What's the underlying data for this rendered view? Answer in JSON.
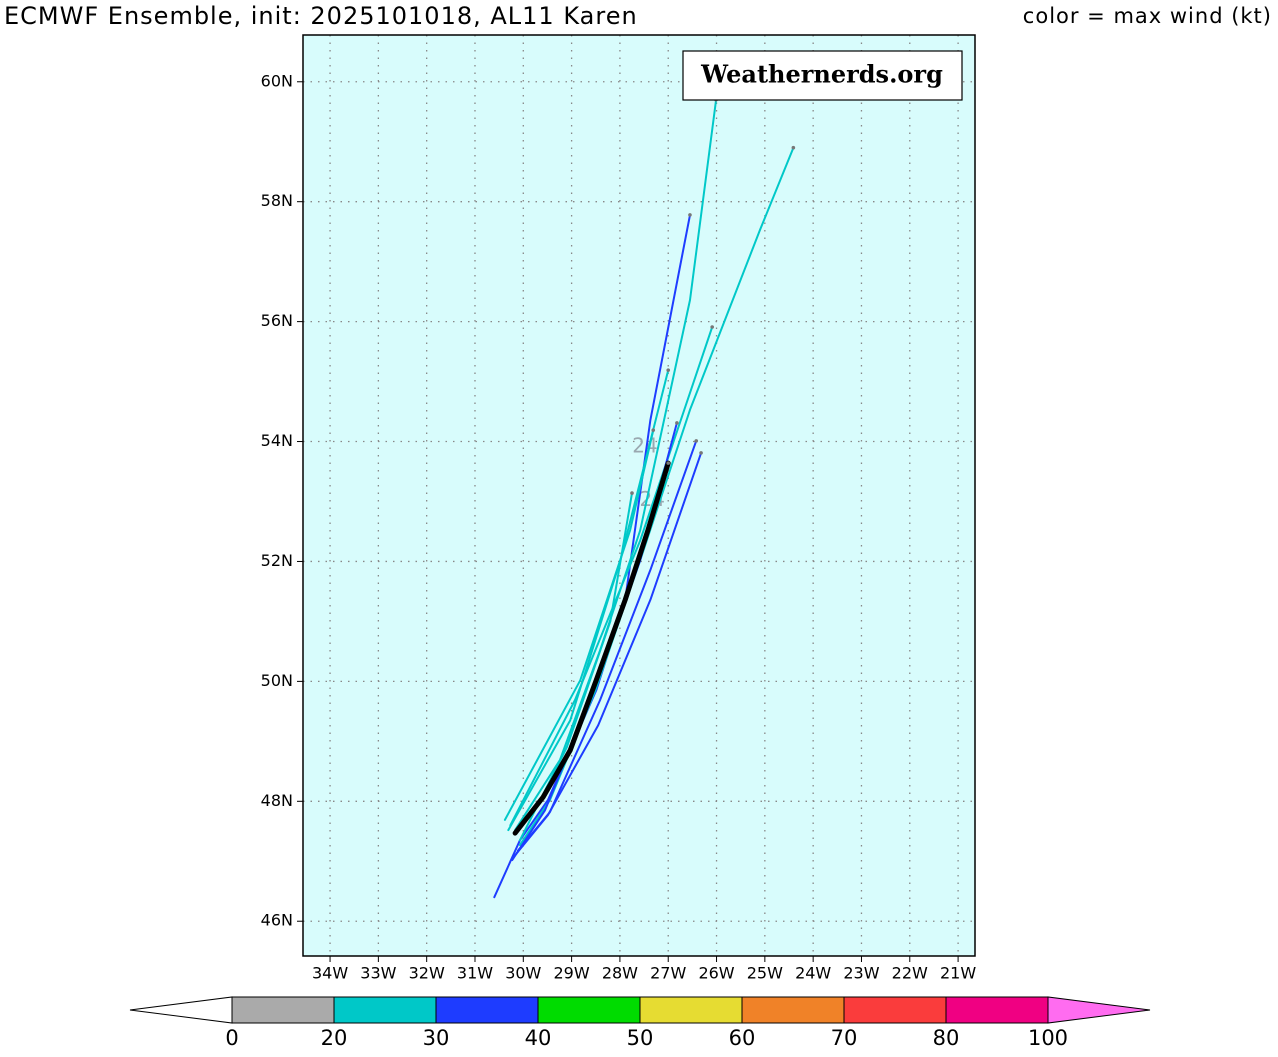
{
  "chart_data": {
    "type": "track_map",
    "title": "ECMWF Ensemble, init: 2025101018, AL11 Karen",
    "subtitle": "color = max wind (kt)",
    "watermark": "Weathernerds.org",
    "xlim": [
      -34.56,
      -20.65
    ],
    "ylim": [
      45.42,
      60.78
    ],
    "xticks": [
      {
        "value": -34,
        "label": "34W"
      },
      {
        "value": -33,
        "label": "33W"
      },
      {
        "value": -32,
        "label": "32W"
      },
      {
        "value": -31,
        "label": "31W"
      },
      {
        "value": -30,
        "label": "30W"
      },
      {
        "value": -29,
        "label": "29W"
      },
      {
        "value": -28,
        "label": "28W"
      },
      {
        "value": -27,
        "label": "27W"
      },
      {
        "value": -26,
        "label": "26W"
      },
      {
        "value": -25,
        "label": "25W"
      },
      {
        "value": -24,
        "label": "24W"
      },
      {
        "value": -23,
        "label": "23W"
      },
      {
        "value": -22,
        "label": "22W"
      },
      {
        "value": -21,
        "label": "21W"
      }
    ],
    "yticks": [
      {
        "value": 46,
        "label": "46N"
      },
      {
        "value": 48,
        "label": "48N"
      },
      {
        "value": 50,
        "label": "50N"
      },
      {
        "value": 52,
        "label": "52N"
      },
      {
        "value": 54,
        "label": "54N"
      },
      {
        "value": 56,
        "label": "56N"
      },
      {
        "value": 58,
        "label": "58N"
      },
      {
        "value": 60,
        "label": "60N"
      }
    ],
    "grid": true,
    "background": "#d8fcfc",
    "series": [
      {
        "color": "#1e3cff",
        "lon": [
          -30.6,
          -30.07,
          -29.49,
          -28.49,
          -27.89,
          -27.37,
          -26.55
        ],
        "lat": [
          46.4,
          47.35,
          48.02,
          49.85,
          51.36,
          54.36,
          57.78
        ]
      },
      {
        "color": "#00c8c8",
        "lon": [
          -30.17,
          -29.24,
          -28.41,
          -27.58,
          -26.55,
          -26.01
        ],
        "lat": [
          47.52,
          48.69,
          50.52,
          52.52,
          56.36,
          59.7
        ]
      },
      {
        "color": "#00c8c8",
        "lon": [
          -30.07,
          -29.45,
          -28.51,
          -27.58,
          -26.55,
          -25.1,
          -24.41
        ],
        "lat": [
          47.27,
          48.02,
          49.85,
          52.02,
          54.53,
          57.53,
          58.9
        ]
      },
      {
        "color": "#00c8c8",
        "lon": [
          -30.27,
          -28.93,
          -27.58,
          -26.09
        ],
        "lat": [
          47.6,
          49.69,
          52.35,
          55.91
        ]
      },
      {
        "color": "#00c8c8",
        "lon": [
          -30.31,
          -29.03,
          -27.99,
          -27.0
        ],
        "lat": [
          47.52,
          49.35,
          52.02,
          55.19
        ]
      },
      {
        "color": "#1e3cff",
        "lon": [
          -30.17,
          -29.49,
          -28.45,
          -27.37,
          -26.32
        ],
        "lat": [
          47.1,
          47.77,
          49.27,
          51.36,
          53.81
        ]
      },
      {
        "color": "#1e3cff",
        "lon": [
          -30.23,
          -29.55,
          -28.62,
          -27.58,
          -26.82
        ],
        "lat": [
          47.02,
          47.85,
          49.69,
          52.02,
          54.31
        ]
      },
      {
        "color": "#00c8c8",
        "lon": [
          -30.38,
          -28.82,
          -27.79,
          -27.31
        ],
        "lat": [
          47.69,
          50.02,
          52.52,
          54.19
        ]
      },
      {
        "color": "#1e3cff",
        "lon": [
          -30.11,
          -29.45,
          -28.41,
          -27.37,
          -26.42
        ],
        "lat": [
          47.18,
          47.82,
          49.69,
          51.86,
          54.01
        ]
      },
      {
        "color": "#00c8c8",
        "lon": [
          -30.07,
          -29.1,
          -28.2,
          -27.75
        ],
        "lat": [
          47.35,
          48.9,
          51.0,
          53.14
        ]
      }
    ],
    "mean_track": {
      "color": "#000000",
      "lon": [
        -30.17,
        -29.59,
        -29.03,
        -28.49,
        -27.89,
        -27.42,
        -27.0
      ],
      "lat": [
        47.47,
        48.07,
        48.85,
        50.02,
        51.36,
        52.52,
        53.64
      ]
    },
    "annotations": [
      {
        "text": "24",
        "lon": -27.48,
        "lat": 53.91
      },
      {
        "text": "24",
        "lon": -27.33,
        "lat": 53.02
      }
    ],
    "colorbar": {
      "levels": [
        0,
        20,
        30,
        40,
        50,
        60,
        70,
        80,
        100
      ],
      "colors": [
        "#aaaaaa",
        "#00c8c8",
        "#1e3cff",
        "#00dc00",
        "#e6dc32",
        "#f08228",
        "#fa3c3c",
        "#f00082"
      ],
      "under_color": "#ffffff",
      "over_color": "#ff6cf0"
    }
  }
}
